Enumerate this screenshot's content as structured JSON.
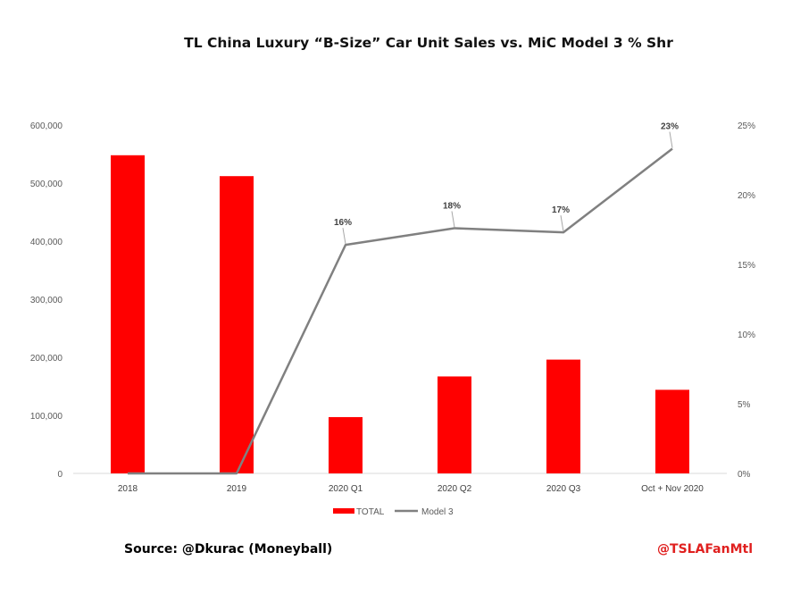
{
  "colors": {
    "bar": "#ff0000",
    "line": "#808080",
    "handle": "#e0201f",
    "axis": "#d9d9d9"
  },
  "chart_data": {
    "type": "bar",
    "title": "TL China Luxury “B-Size” Car Unit Sales vs. MiC Model 3 % Shr",
    "categories": [
      "2018",
      "2019",
      "2020 Q1",
      "2020 Q2",
      "2020 Q3",
      "Oct + Nov 2020"
    ],
    "series": [
      {
        "name": "TOTAL",
        "type": "bar",
        "axis": "left",
        "values": [
          548000,
          512000,
          97000,
          167000,
          196000,
          144000
        ]
      },
      {
        "name": "Model 3",
        "type": "line",
        "axis": "right",
        "values": [
          0,
          0,
          16.4,
          17.6,
          17.3,
          23.3
        ],
        "data_labels": [
          "",
          "",
          "16%",
          "18%",
          "17%",
          "23%"
        ]
      }
    ],
    "y_left": {
      "lim": [
        0,
        600000
      ],
      "ticks": [
        "0",
        "100,000",
        "200,000",
        "300,000",
        "400,000",
        "500,000",
        "600,000"
      ]
    },
    "y_right": {
      "lim": [
        0,
        25
      ],
      "ticks": [
        "0%",
        "5%",
        "10%",
        "15%",
        "20%",
        "25%"
      ]
    },
    "legend_position": "bottom",
    "grid": false
  },
  "footer": {
    "source": "Source: @Dkurac (Moneyball)",
    "handle": "@TSLAFanMtl"
  }
}
